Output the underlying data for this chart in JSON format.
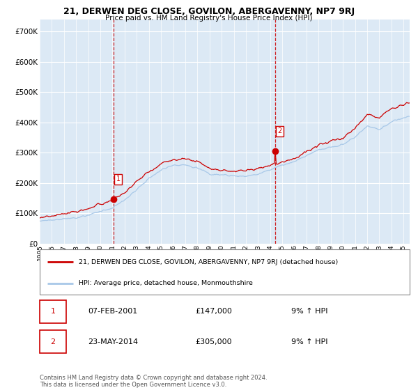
{
  "title": "21, DERWEN DEG CLOSE, GOVILON, ABERGAVENNY, NP7 9RJ",
  "subtitle": "Price paid vs. HM Land Registry's House Price Index (HPI)",
  "ytick_values": [
    0,
    100000,
    200000,
    300000,
    400000,
    500000,
    600000,
    700000
  ],
  "ylim": [
    0,
    740000
  ],
  "xlim_start": 1995.0,
  "xlim_end": 2025.5,
  "hpi_color": "#a8c8e8",
  "price_color": "#cc0000",
  "bg_color": "#dce9f5",
  "grid_color": "#ffffff",
  "sale1_x": 2001.083,
  "sale1_y": 147000,
  "sale2_x": 2014.4,
  "sale2_y": 305000,
  "legend_line1": "21, DERWEN DEG CLOSE, GOVILON, ABERGAVENNY, NP7 9RJ (detached house)",
  "legend_line2": "HPI: Average price, detached house, Monmouthshire",
  "ann1_label": "1",
  "ann1_date": "07-FEB-2001",
  "ann1_price": "£147,000",
  "ann1_hpi": "9% ↑ HPI",
  "ann2_label": "2",
  "ann2_date": "23-MAY-2014",
  "ann2_price": "£305,000",
  "ann2_hpi": "9% ↑ HPI",
  "footer": "Contains HM Land Registry data © Crown copyright and database right 2024.\nThis data is licensed under the Open Government Licence v3.0."
}
